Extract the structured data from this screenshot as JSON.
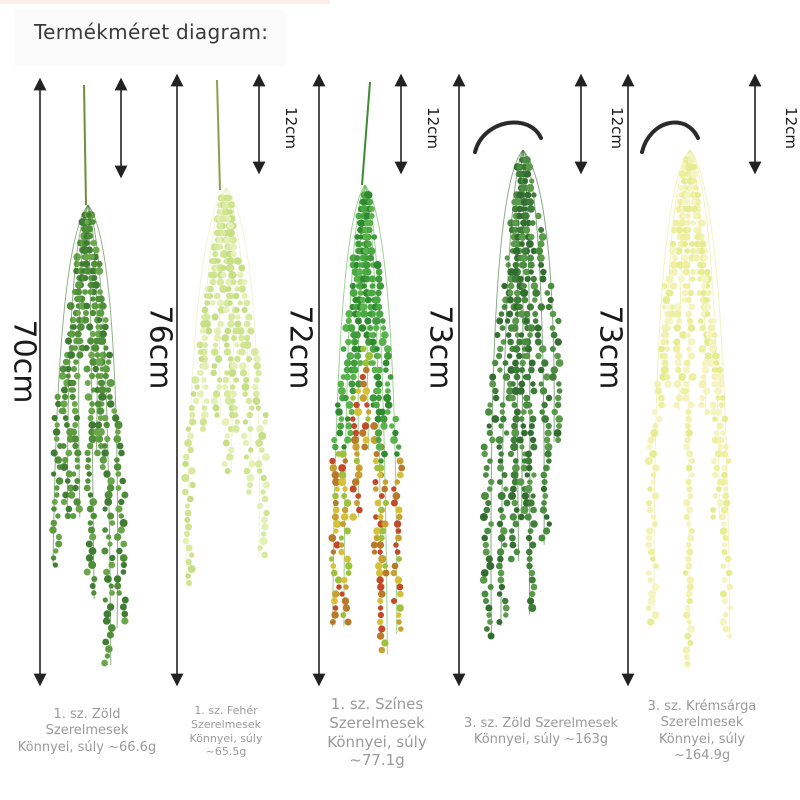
{
  "title": "Termékméret diagram:",
  "products": [
    {
      "length": "70cm",
      "stem": "12cm",
      "caption": [
        "1. sz. Zöld",
        "Szerelmesek",
        "Könnyei, súly ~66.6g"
      ]
    },
    {
      "length": "76cm",
      "stem": "12cm",
      "caption": [
        "1. sz. Fehér",
        "Szerelmesek",
        "Könnyei, súly",
        "~65.5g"
      ]
    },
    {
      "length": "72cm",
      "stem": "12cm",
      "caption": [
        "1. sz. Színes",
        "Szerelmesek",
        "Könnyei, súly",
        "~77.1g"
      ]
    },
    {
      "length": "73cm",
      "stem": "12cm",
      "caption": [
        "3. sz. Zöld Szerelmesek",
        "Könnyei, súly ~163g"
      ]
    },
    {
      "length": "73cm",
      "stem": "12cm",
      "caption": [
        "3. sz. Krémsárga",
        "Szerelmesek",
        "Könnyei, súly",
        "~164.9g"
      ]
    }
  ],
  "colors": {
    "green": "#4f8f3a",
    "white": "#d8eaa0",
    "colorful": "#3f9a3c",
    "dark_green": "#3e7e38",
    "cream": "#eef0a0"
  }
}
